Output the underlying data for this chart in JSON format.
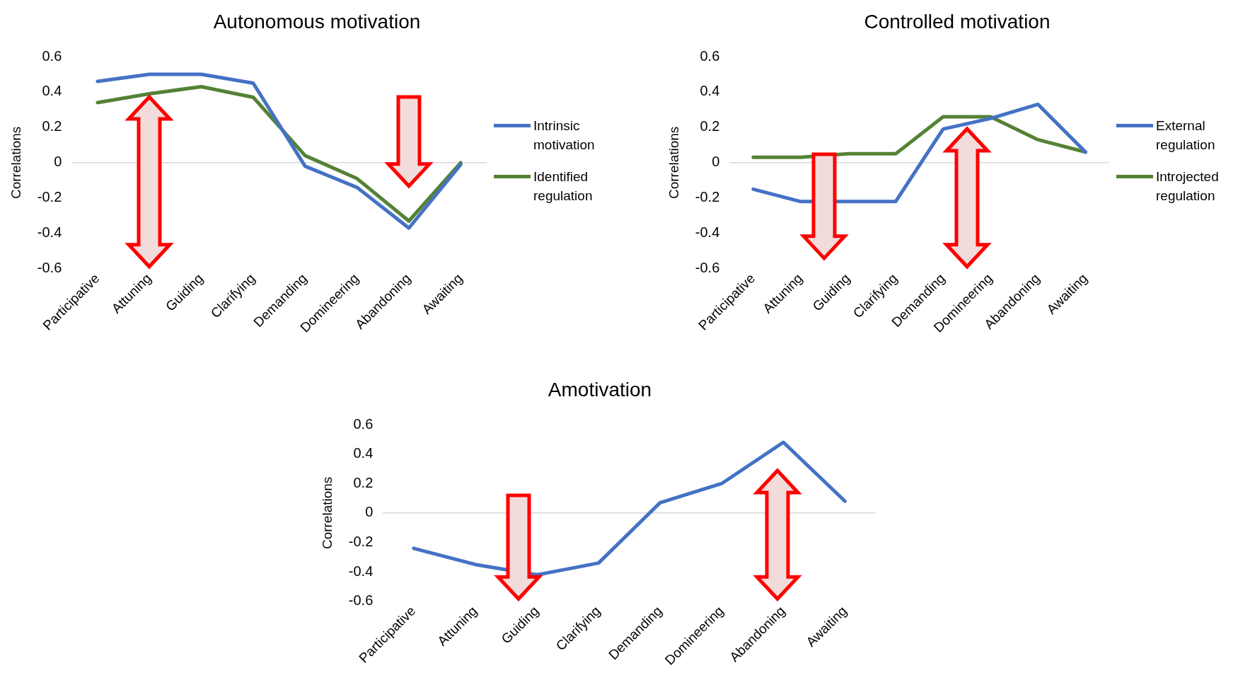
{
  "chart_data": [
    {
      "type": "line",
      "title": "Autonomous motivation",
      "ylabel": "Correlations",
      "categories": [
        "Participative",
        "Attuning",
        "Guiding",
        "Clarifying",
        "Demanding",
        "Domineering",
        "Abandoning",
        "Awaiting"
      ],
      "series": [
        {
          "name": "Intrinsic motivation",
          "color": "#4472c4",
          "values": [
            0.46,
            0.5,
            0.5,
            0.45,
            -0.02,
            -0.14,
            -0.37,
            -0.01
          ]
        },
        {
          "name": "Identified regulation",
          "color": "#548235",
          "values": [
            0.34,
            0.39,
            0.43,
            0.37,
            0.04,
            -0.09,
            -0.33,
            0.0
          ]
        }
      ],
      "ylim": [
        -0.6,
        0.6
      ],
      "yticks": [
        -0.6,
        -0.4,
        -0.2,
        0,
        0.2,
        0.4,
        0.6
      ],
      "legend": "right",
      "grid": false,
      "marker": "none",
      "ref_lines": [
        {
          "axis": "y",
          "value": 0,
          "color": "#d9d9d9"
        }
      ]
    },
    {
      "type": "line",
      "title": "Controlled motivation",
      "ylabel": "Correlations",
      "categories": [
        "Participative",
        "Attuning",
        "Guiding",
        "Clarifying",
        "Demanding",
        "Domineering",
        "Abandoning",
        "Awaiting"
      ],
      "series": [
        {
          "name": "External regulation",
          "color": "#4472c4",
          "values": [
            -0.15,
            -0.22,
            -0.22,
            -0.22,
            0.19,
            0.25,
            0.33,
            0.06
          ]
        },
        {
          "name": "Introjected regulation",
          "color": "#548235",
          "values": [
            0.03,
            0.03,
            0.05,
            0.05,
            0.26,
            0.26,
            0.13,
            0.06
          ]
        }
      ],
      "ylim": [
        -0.6,
        0.6
      ],
      "yticks": [
        -0.6,
        -0.4,
        -0.2,
        0,
        0.2,
        0.4,
        0.6
      ],
      "legend": "right",
      "grid": false,
      "marker": "none",
      "ref_lines": [
        {
          "axis": "y",
          "value": 0,
          "color": "#d9d9d9"
        }
      ]
    },
    {
      "type": "line",
      "title": "Amotivation",
      "ylabel": "Correlations",
      "categories": [
        "Participative",
        "Attuning",
        "Guiding",
        "Clarifying",
        "Demanding",
        "Domineering",
        "Abandoning",
        "Awaiting"
      ],
      "series": [
        {
          "color": "#4472c4",
          "values": [
            -0.24,
            -0.35,
            -0.42,
            -0.34,
            0.07,
            0.2,
            0.48,
            0.08
          ]
        }
      ],
      "ylim": [
        -0.6,
        0.6
      ],
      "yticks": [
        -0.6,
        -0.4,
        -0.2,
        0,
        0.2,
        0.4,
        0.6
      ],
      "grid": false,
      "marker": "none",
      "ref_lines": [
        {
          "axis": "y",
          "value": 0,
          "color": "#d9d9d9"
        }
      ]
    }
  ]
}
